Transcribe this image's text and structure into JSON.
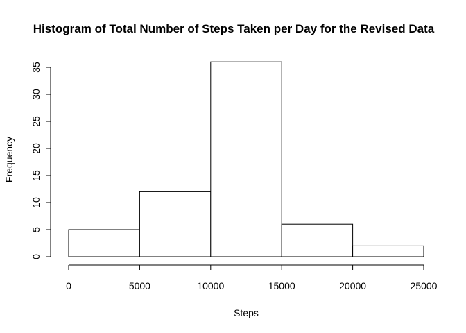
{
  "chart_data": {
    "type": "bar",
    "title": "Histogram of Total Number of Steps Taken per Day for the Revised Data",
    "xlabel": "Steps",
    "ylabel": "Frequency",
    "bins": [
      {
        "start": 0,
        "end": 5000,
        "count": 5
      },
      {
        "start": 5000,
        "end": 10000,
        "count": 12
      },
      {
        "start": 10000,
        "end": 15000,
        "count": 36
      },
      {
        "start": 15000,
        "end": 20000,
        "count": 6
      },
      {
        "start": 20000,
        "end": 25000,
        "count": 2
      }
    ],
    "xlim": [
      0,
      25000
    ],
    "ylim": [
      0,
      35
    ],
    "x_ticks": [
      "0",
      "5000",
      "10000",
      "15000",
      "20000",
      "25000"
    ],
    "y_ticks": [
      "0",
      "5",
      "10",
      "15",
      "20",
      "25",
      "30",
      "35"
    ],
    "grid": false,
    "legend": "none"
  }
}
